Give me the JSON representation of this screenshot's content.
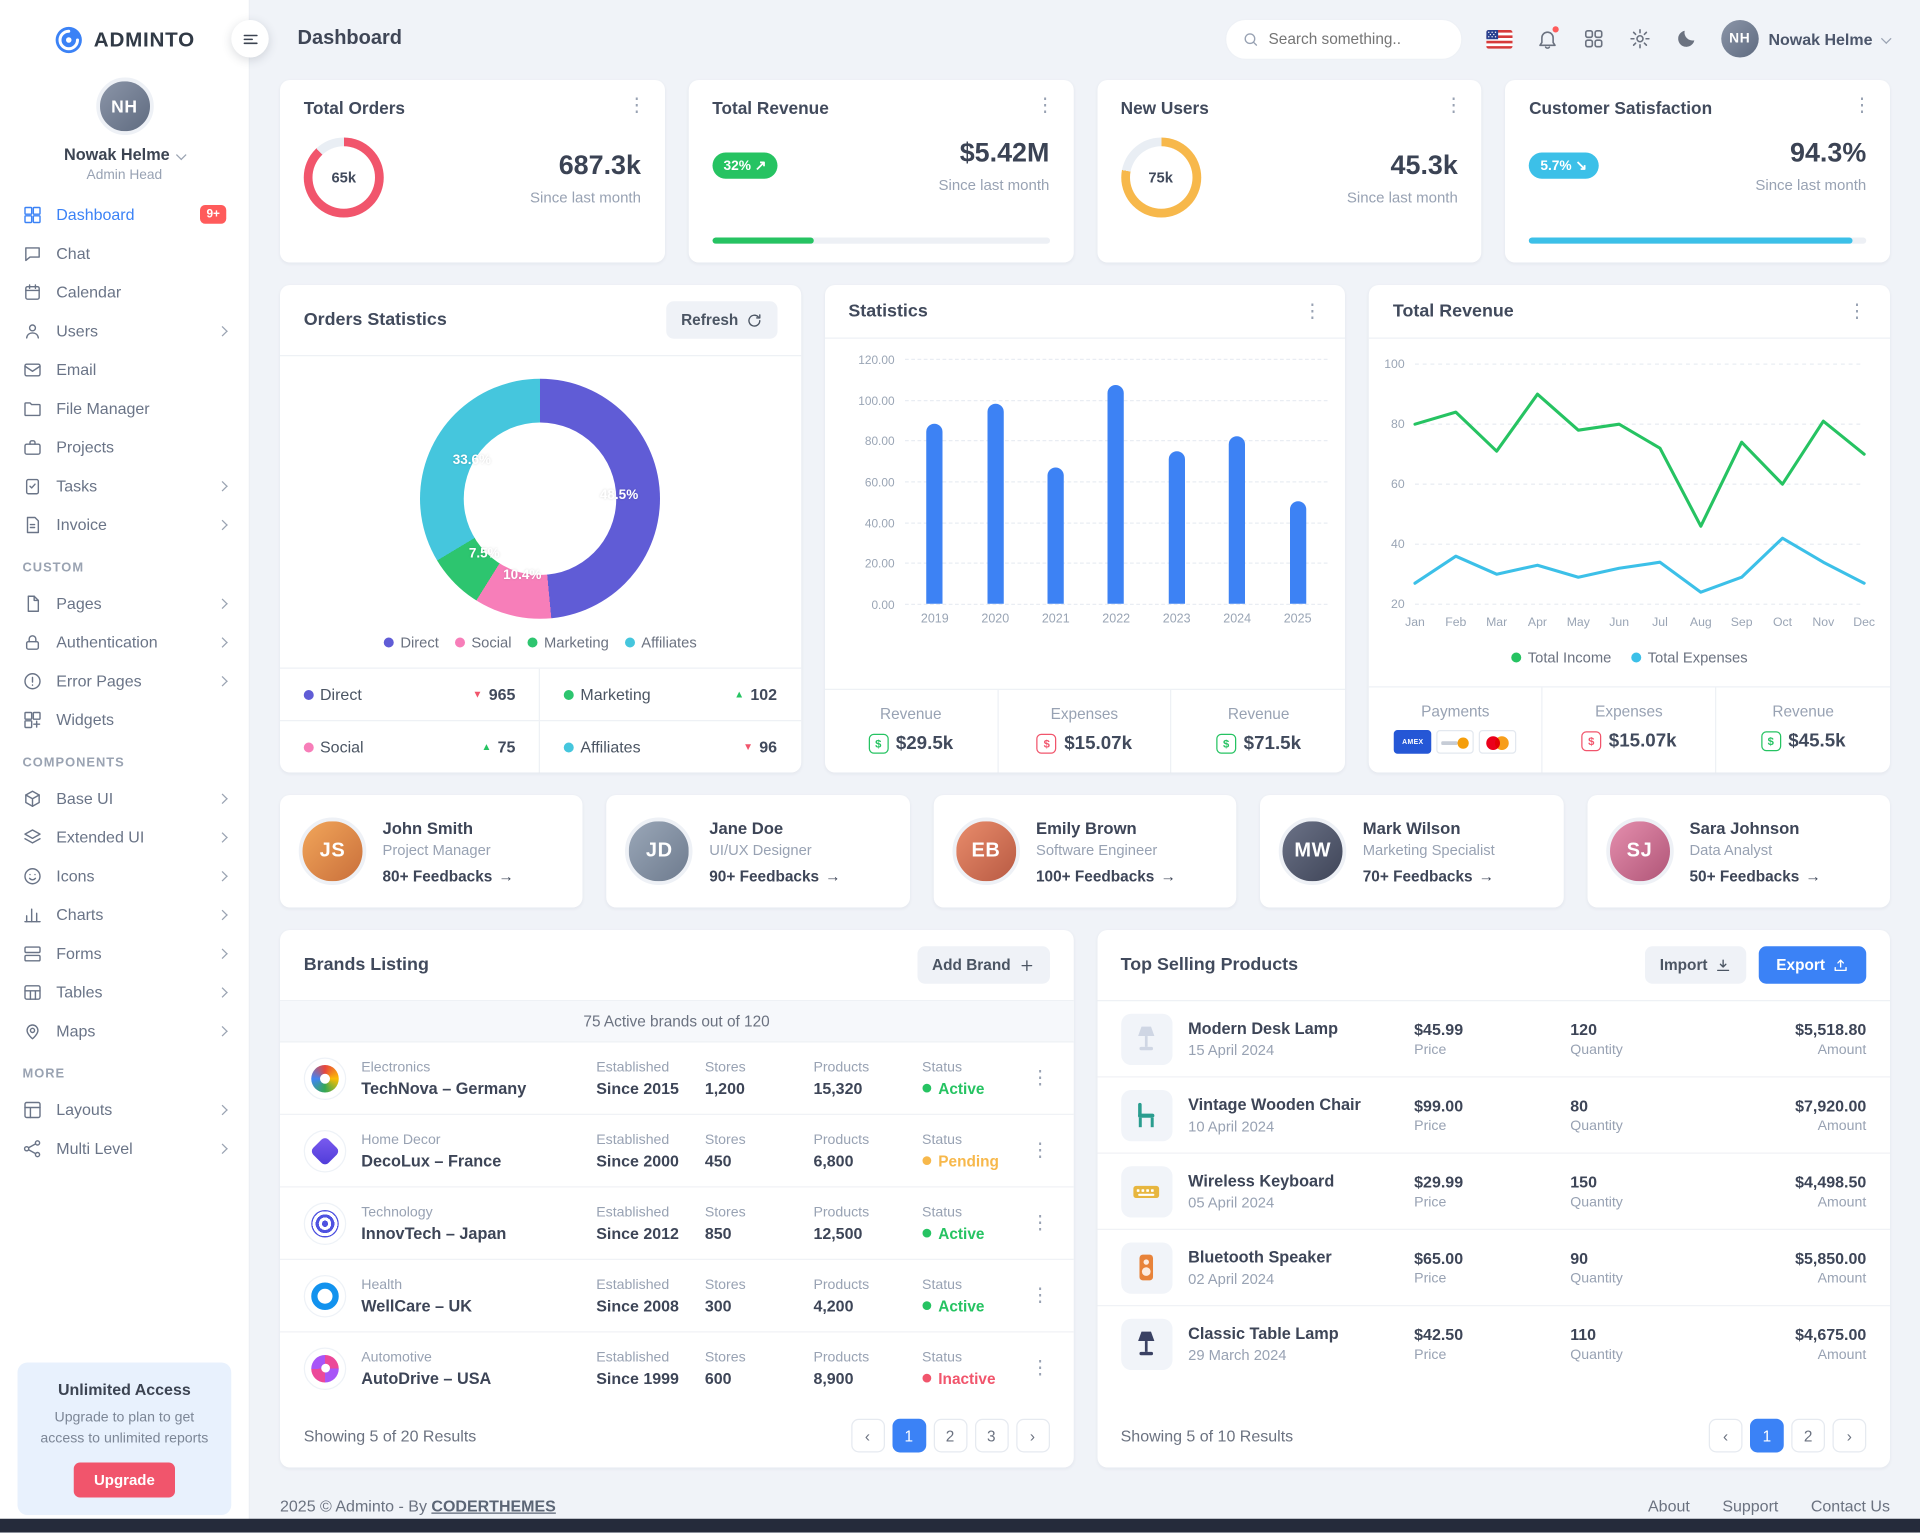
{
  "app": {
    "name": "ADMINTO"
  },
  "user": {
    "name": "Nowak Helme",
    "role": "Admin Head"
  },
  "sidebar": {
    "sections": [
      {
        "title": "",
        "items": [
          {
            "label": "Dashboard",
            "badge": "9+"
          },
          {
            "label": "Chat"
          },
          {
            "label": "Calendar"
          },
          {
            "label": "Users"
          },
          {
            "label": "Email"
          },
          {
            "label": "File Manager"
          },
          {
            "label": "Projects"
          },
          {
            "label": "Tasks"
          },
          {
            "label": "Invoice"
          }
        ]
      },
      {
        "title": "CUSTOM",
        "items": [
          {
            "label": "Pages"
          },
          {
            "label": "Authentication"
          },
          {
            "label": "Error Pages"
          },
          {
            "label": "Widgets"
          }
        ]
      },
      {
        "title": "COMPONENTS",
        "items": [
          {
            "label": "Base UI"
          },
          {
            "label": "Extended UI"
          },
          {
            "label": "Icons"
          },
          {
            "label": "Charts"
          },
          {
            "label": "Forms"
          },
          {
            "label": "Tables"
          },
          {
            "label": "Maps"
          }
        ]
      },
      {
        "title": "MORE",
        "items": [
          {
            "label": "Layouts"
          },
          {
            "label": "Multi Level"
          }
        ]
      }
    ],
    "upgrade": {
      "title": "Unlimited Access",
      "text": "Upgrade to plan to get access to unlimited reports",
      "button": "Upgrade"
    }
  },
  "topbar": {
    "page_title": "Dashboard",
    "search_placeholder": "Search something..",
    "user_name": "Nowak Helme"
  },
  "stat_cards": [
    {
      "title": "Total Orders",
      "donut_label": "65k",
      "donut_pct": 88,
      "color": "#f1556c",
      "value": "687.3k",
      "subtitle": "Since last month"
    },
    {
      "title": "Total Revenue",
      "badge": "32%",
      "badge_color": "#26c362",
      "value": "$5.42M",
      "subtitle": "Since last month",
      "progress_pct": 30,
      "progress_color": "#26c362"
    },
    {
      "title": "New Users",
      "donut_label": "75k",
      "donut_pct": 78,
      "color": "#f7b84b",
      "value": "45.3k",
      "subtitle": "Since last month"
    },
    {
      "title": "Customer Satisfaction",
      "badge": "5.7%",
      "badge_color": "#3cc0e8",
      "value": "94.3%",
      "subtitle": "Since last month",
      "progress_pct": 96,
      "progress_color": "#3cc0e8"
    }
  ],
  "orders_statistics": {
    "title": "Orders Statistics",
    "refresh_label": "Refresh",
    "chart_data": {
      "type": "pie",
      "slices": [
        {
          "label": "Direct",
          "pct": 48.5,
          "color": "#605cd6"
        },
        {
          "label": "Social",
          "pct": 10.4,
          "color": "#f77eb9"
        },
        {
          "label": "Marketing",
          "pct": 7.5,
          "color": "#2dc56f"
        },
        {
          "label": "Affiliates",
          "pct": 33.6,
          "color": "#45c6dd"
        }
      ]
    },
    "legend": [
      {
        "label": "Direct",
        "color": "#605cd6"
      },
      {
        "label": "Social",
        "color": "#f77eb9"
      },
      {
        "label": "Marketing",
        "color": "#2dc56f"
      },
      {
        "label": "Affiliates",
        "color": "#45c6dd"
      }
    ],
    "stats": [
      {
        "label": "Direct",
        "value": "965",
        "direction": "down",
        "color": "#605cd6"
      },
      {
        "label": "Marketing",
        "value": "102",
        "direction": "up",
        "color": "#2dc56f"
      },
      {
        "label": "Social",
        "value": "75",
        "direction": "up",
        "color": "#f77eb9"
      },
      {
        "label": "Affiliates",
        "value": "96",
        "direction": "down",
        "color": "#45c6dd"
      }
    ]
  },
  "statistics": {
    "title": "Statistics",
    "chart_data": {
      "type": "bar",
      "categories": [
        "2019",
        "2020",
        "2021",
        "2022",
        "2023",
        "2024",
        "2025"
      ],
      "values": [
        88,
        98,
        67,
        107,
        75,
        82,
        50
      ],
      "ylim": [
        0,
        120
      ],
      "yticks": [
        "120.00",
        "100.00",
        "80.00",
        "60.00",
        "40.00",
        "20.00",
        "0.00"
      ],
      "bar_color": "#3d82f4"
    },
    "footer": [
      {
        "label": "Revenue",
        "value": "$29.5k",
        "color": "#26c362"
      },
      {
        "label": "Expenses",
        "value": "$15.07k",
        "color": "#f1556c"
      },
      {
        "label": "Revenue",
        "value": "$71.5k",
        "color": "#26c362"
      }
    ]
  },
  "total_revenue": {
    "title": "Total Revenue",
    "chart_data": {
      "type": "line",
      "x": [
        "Jan",
        "Feb",
        "Mar",
        "Apr",
        "May",
        "Jun",
        "Jul",
        "Aug",
        "Sep",
        "Oct",
        "Nov",
        "Dec"
      ],
      "ylim": [
        20,
        100
      ],
      "series": [
        {
          "name": "Total Income",
          "color": "#26c362",
          "values": [
            80,
            84,
            71,
            90,
            78,
            80,
            72,
            46,
            74,
            60,
            81,
            70
          ]
        },
        {
          "name": "Total Expenses",
          "color": "#3cc0e8",
          "values": [
            27,
            36,
            30,
            33,
            29,
            32,
            34,
            24,
            29,
            42,
            34,
            27
          ]
        }
      ]
    },
    "footer": {
      "payments_label": "Payments",
      "payment_methods": [
        "AMEX",
        "Discover",
        "Mastercard"
      ],
      "expenses_label": "Expenses",
      "expenses_value": "$15.07k",
      "expense_color": "#f1556c",
      "revenue_label": "Revenue",
      "revenue_value": "$45.5k",
      "revenue_color": "#26c362"
    }
  },
  "team": [
    {
      "name": "John Smith",
      "role": "Project Manager",
      "feedbacks": "80+ Feedbacks"
    },
    {
      "name": "Jane Doe",
      "role": "UI/UX Designer",
      "feedbacks": "90+ Feedbacks"
    },
    {
      "name": "Emily Brown",
      "role": "Software Engineer",
      "feedbacks": "100+ Feedbacks"
    },
    {
      "name": "Mark Wilson",
      "role": "Marketing Specialist",
      "feedbacks": "70+ Feedbacks"
    },
    {
      "name": "Sara Johnson",
      "role": "Data Analyst",
      "feedbacks": "50+ Feedbacks"
    }
  ],
  "brands": {
    "title": "Brands Listing",
    "add_button": "Add Brand",
    "summary": "75 Active brands out of 120",
    "labels": {
      "established": "Established",
      "stores": "Stores",
      "products": "Products",
      "status": "Status"
    },
    "rows": [
      {
        "category": "Electronics",
        "name": "TechNova – Germany",
        "established": "Since 2015",
        "stores": "1,200",
        "products": "15,320",
        "status": "Active",
        "status_color": "#26c362"
      },
      {
        "category": "Home Decor",
        "name": "DecoLux – France",
        "established": "Since 2000",
        "stores": "450",
        "products": "6,800",
        "status": "Pending",
        "status_color": "#f7b84b"
      },
      {
        "category": "Technology",
        "name": "InnovTech – Japan",
        "established": "Since 2012",
        "stores": "850",
        "products": "12,500",
        "status": "Active",
        "status_color": "#26c362"
      },
      {
        "category": "Health",
        "name": "WellCare – UK",
        "established": "Since 2008",
        "stores": "300",
        "products": "4,200",
        "status": "Active",
        "status_color": "#26c362"
      },
      {
        "category": "Automotive",
        "name": "AutoDrive – USA",
        "established": "Since 1999",
        "stores": "600",
        "products": "8,900",
        "status": "Inactive",
        "status_color": "#f1556c"
      }
    ],
    "footer_text": "Showing 5 of 20 Results",
    "pages": [
      "1",
      "2",
      "3"
    ]
  },
  "products": {
    "title": "Top Selling Products",
    "import_button": "Import",
    "export_button": "Export",
    "labels": {
      "price": "Price",
      "quantity": "Quantity",
      "amount": "Amount"
    },
    "rows": [
      {
        "name": "Modern Desk Lamp",
        "date": "15 April 2024",
        "price": "$45.99",
        "quantity": "120",
        "amount": "$5,518.80"
      },
      {
        "name": "Vintage Wooden Chair",
        "date": "10 April 2024",
        "price": "$99.00",
        "quantity": "80",
        "amount": "$7,920.00"
      },
      {
        "name": "Wireless Keyboard",
        "date": "05 April 2024",
        "price": "$29.99",
        "quantity": "150",
        "amount": "$4,498.50"
      },
      {
        "name": "Bluetooth Speaker",
        "date": "02 April 2024",
        "price": "$65.00",
        "quantity": "90",
        "amount": "$5,850.00"
      },
      {
        "name": "Classic Table Lamp",
        "date": "29 March 2024",
        "price": "$42.50",
        "quantity": "110",
        "amount": "$4,675.00"
      }
    ],
    "footer_text": "Showing 5 of 10 Results",
    "pages": [
      "1",
      "2"
    ]
  },
  "page_footer": {
    "copyright": "2025 © Adminto - By",
    "brand_link": "CODERTHEMES",
    "links": [
      "About",
      "Support",
      "Contact Us"
    ]
  }
}
